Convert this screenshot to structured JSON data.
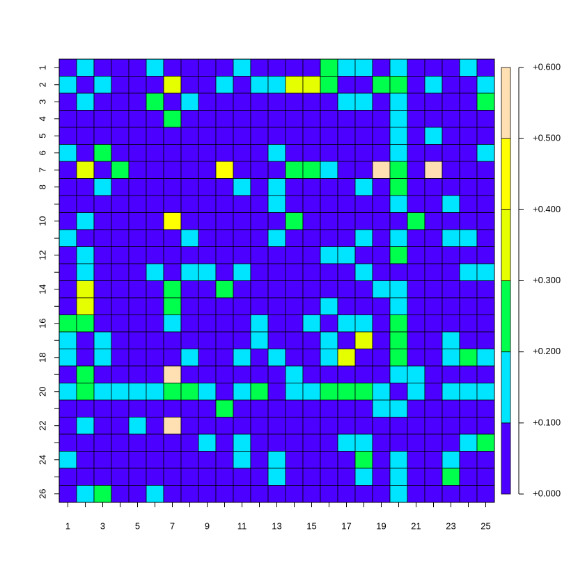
{
  "chart_data": {
    "type": "heatmap",
    "columns": [
      1,
      null,
      3,
      null,
      5,
      null,
      7,
      null,
      9,
      null,
      11,
      null,
      13,
      null,
      15,
      null,
      17,
      null,
      19,
      null,
      21,
      null,
      23,
      null,
      25
    ],
    "rows": [
      1,
      2,
      3,
      4,
      5,
      6,
      7,
      8,
      null,
      10,
      null,
      12,
      null,
      14,
      null,
      16,
      null,
      18,
      null,
      20,
      null,
      22,
      null,
      24,
      null,
      26
    ],
    "colors": [
      "#4C00FF",
      "#00E5FF",
      "#00FF4D",
      "#E6FF00",
      "#FFFF00",
      "#FFE0B3"
    ],
    "colorbar_ticks": [
      {
        "value": 0,
        "label": "+0.000"
      },
      {
        "value": 0.1,
        "label": "+0.100"
      },
      {
        "value": 0.2,
        "label": "+0.200"
      },
      {
        "value": 0.3,
        "label": "+0.300"
      },
      {
        "value": 0.4,
        "label": "+0.400"
      },
      {
        "value": 0.5,
        "label": "+0.500"
      },
      {
        "value": 0.6,
        "label": "+0.600"
      }
    ],
    "values": [
      "PCPPPCPPPPCPPPPGCCPCPPPCP",
      "CPCPPPYPPCPCCYYGPPGGPCPPC",
      "PCPPPGPCPPPPPPPPCCPCPPPPG",
      "PPPPPPGPPPPPPPPPPPPCPPPPP",
      "PPPPPPPPPPPPPPPPPPPCPCPPP",
      "CPGPPPPPPPPPCPPPPPPCPPPPC",
      "PYPGPPPPPZPPPGGCPPWGPWPPP",
      "PPCPPPPPPPCPCPPPPCPGPPPPP",
      "PPPPPPPPPPPPCPPPPPPCPPCPP",
      "PCPPPPZPPPPPPGPPPPPPGPPPP",
      "CPPPPPPCPPPPCPPPPCPCPPCCP",
      "PCPPPPPPPPPPPPPCCPPGPPPPP",
      "PCPPPCPCCPCPPPPPPCPPPPPCC",
      "PYPPPPGPPGPPPPPPPPCCPPPPP",
      "PYPPPPGPPPPPPPPCPPPCPPPPP",
      "GGPPPPCPPPPCPPCPCCPGPPPPP",
      "CPCPPPPPPPPCPPPCPYPGPPCPP",
      "CPCPPPPCPPCPCPPCYPPGPPCGC",
      "PGPPPPWPPPPPPCPPPPPCCPPPP",
      "CGCCCCGGCPCGPCCGGGCPCPCCC",
      "PPPPPPPPPGPPPPPPPPCCPPPPP",
      "PCPPCPWPPPPPPPPPPPPPPPPPP",
      "PPPPPPPPCPCPPPPPCCPPPPPCG",
      "CPPPPPPPPPCPCPPPPGPCPPCPP",
      "PPPPPPPPPPPPCPPPPCPCPPGPP",
      "PCGPPCPPPPPPPPPPPPPCPPPPP"
    ]
  }
}
